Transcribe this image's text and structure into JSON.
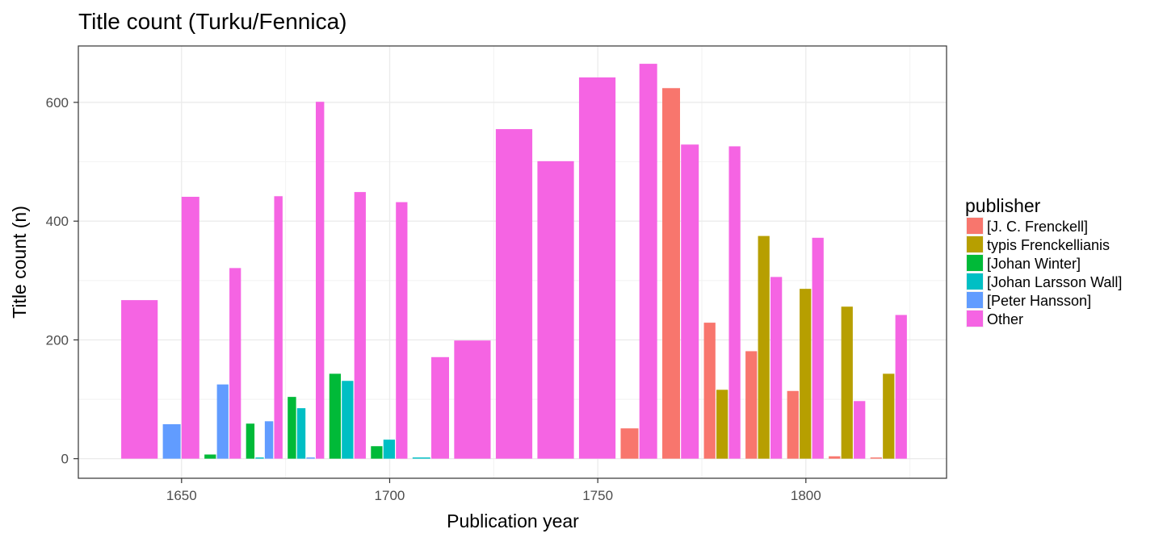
{
  "chart_data": {
    "type": "bar",
    "title": "Title count (Turku/Fennica)",
    "xlabel": "Publication year",
    "ylabel": "Title count (n)",
    "xlim": [
      1625.2,
      1833.8
    ],
    "ylim": [
      -33,
      695
    ],
    "xticks": [
      1650,
      1700,
      1750,
      1800
    ],
    "yticks": [
      0,
      200,
      400,
      600
    ],
    "grid": true,
    "legend": {
      "title": "publisher",
      "position": "right"
    },
    "bin_width": 10,
    "bins": [
      1640,
      1650,
      1660,
      1670,
      1680,
      1690,
      1700,
      1710,
      1720,
      1730,
      1740,
      1750,
      1760,
      1770,
      1780,
      1790,
      1800,
      1810,
      1820
    ],
    "series": [
      {
        "name": "[J. C. Frenckell]",
        "color": "#F8766D",
        "points": [
          {
            "x": 1760,
            "y": 51
          },
          {
            "x": 1770,
            "y": 624
          },
          {
            "x": 1780,
            "y": 229
          },
          {
            "x": 1790,
            "y": 181
          },
          {
            "x": 1800,
            "y": 114
          },
          {
            "x": 1810,
            "y": 4
          },
          {
            "x": 1820,
            "y": 2
          }
        ]
      },
      {
        "name": "typis Frenckellianis",
        "color": "#B79F00",
        "points": [
          {
            "x": 1780,
            "y": 116
          },
          {
            "x": 1790,
            "y": 375
          },
          {
            "x": 1800,
            "y": 286
          },
          {
            "x": 1810,
            "y": 256
          },
          {
            "x": 1820,
            "y": 143
          }
        ]
      },
      {
        "name": "[Johan Winter]",
        "color": "#00BA38",
        "points": [
          {
            "x": 1660,
            "y": 7
          },
          {
            "x": 1670,
            "y": 59
          },
          {
            "x": 1680,
            "y": 104
          },
          {
            "x": 1690,
            "y": 143
          },
          {
            "x": 1700,
            "y": 21
          }
        ]
      },
      {
        "name": "[Johan Larsson Wall]",
        "color": "#00BFC4",
        "points": [
          {
            "x": 1670,
            "y": 2
          },
          {
            "x": 1680,
            "y": 85
          },
          {
            "x": 1690,
            "y": 131
          },
          {
            "x": 1700,
            "y": 32
          },
          {
            "x": 1710,
            "y": 2
          }
        ]
      },
      {
        "name": "[Peter Hansson]",
        "color": "#619CFF",
        "points": [
          {
            "x": 1650,
            "y": 58
          },
          {
            "x": 1660,
            "y": 125
          },
          {
            "x": 1670,
            "y": 63
          },
          {
            "x": 1680,
            "y": 2
          }
        ]
      },
      {
        "name": "Other",
        "color": "#F564E3",
        "points": [
          {
            "x": 1640,
            "y": 267
          },
          {
            "x": 1650,
            "y": 441
          },
          {
            "x": 1660,
            "y": 321
          },
          {
            "x": 1670,
            "y": 442
          },
          {
            "x": 1680,
            "y": 601
          },
          {
            "x": 1690,
            "y": 449
          },
          {
            "x": 1700,
            "y": 432
          },
          {
            "x": 1710,
            "y": 171
          },
          {
            "x": 1720,
            "y": 199
          },
          {
            "x": 1730,
            "y": 555
          },
          {
            "x": 1740,
            "y": 501
          },
          {
            "x": 1750,
            "y": 642
          },
          {
            "x": 1760,
            "y": 665
          },
          {
            "x": 1770,
            "y": 529
          },
          {
            "x": 1780,
            "y": 526
          },
          {
            "x": 1790,
            "y": 306
          },
          {
            "x": 1800,
            "y": 372
          },
          {
            "x": 1810,
            "y": 97
          },
          {
            "x": 1820,
            "y": 242
          }
        ]
      }
    ]
  }
}
